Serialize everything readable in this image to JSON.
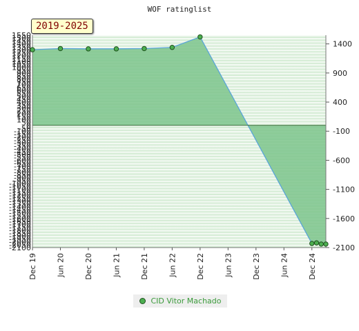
{
  "chart_data": {
    "type": "area",
    "title": "WOF ratinglist",
    "period_badge": "2019-2025",
    "x_ticks": [
      "Dec 19",
      "Jun 20",
      "Dec 20",
      "Jun 21",
      "Dec 21",
      "Jun 22",
      "Dec 22",
      "Jun 23",
      "Dec 23",
      "Jun 24",
      "Dec 24"
    ],
    "y_left_ticks": [
      1550,
      1500,
      1450,
      1400,
      1350,
      1300,
      1250,
      1200,
      1150,
      1100,
      1050,
      1000,
      950,
      900,
      850,
      800,
      750,
      700,
      650,
      600,
      550,
      500,
      450,
      400,
      350,
      300,
      250,
      200,
      150,
      100,
      50,
      0,
      -50,
      -100,
      -150,
      -200,
      -250,
      -300,
      -350,
      -400,
      -450,
      -500,
      -550,
      -600,
      -650,
      -700,
      -750,
      -800,
      -850,
      -900,
      -950,
      -1000,
      -1050,
      -1100,
      -1150,
      -1200,
      -1250,
      -1300,
      -1350,
      -1400,
      -1450,
      -1500,
      -1550,
      -1600,
      -1650,
      -1700,
      -1750,
      -1800,
      -1850,
      -1900,
      -1950,
      -2000,
      -2050,
      -2100
    ],
    "y_right_ticks": [
      1400,
      900,
      400,
      -100,
      -600,
      -1100,
      -1600,
      -2100
    ],
    "ylim": [
      -2100,
      1550
    ],
    "xlim": [
      "2019-12",
      "2025-03"
    ],
    "series": [
      {
        "name": "CID Vitor Machado",
        "points": [
          {
            "x": "2019-12",
            "y": 1300
          },
          {
            "x": "2020-06",
            "y": 1320
          },
          {
            "x": "2020-12",
            "y": 1315
          },
          {
            "x": "2021-06",
            "y": 1315
          },
          {
            "x": "2021-12",
            "y": 1320
          },
          {
            "x": "2022-06",
            "y": 1340
          },
          {
            "x": "2022-12",
            "y": 1520
          },
          {
            "x": "2024-12",
            "y": -2030
          },
          {
            "x": "2025-01",
            "y": -2020
          },
          {
            "x": "2025-02",
            "y": -2040
          },
          {
            "x": "2025-03",
            "y": -2040
          }
        ]
      }
    ],
    "colors": {
      "fill": "#7cc48c",
      "line": "#5aa5d8",
      "marker": "#4caf50",
      "marker_edge": "#1f4f1f"
    },
    "grid": true,
    "legend_position": "bottom"
  }
}
